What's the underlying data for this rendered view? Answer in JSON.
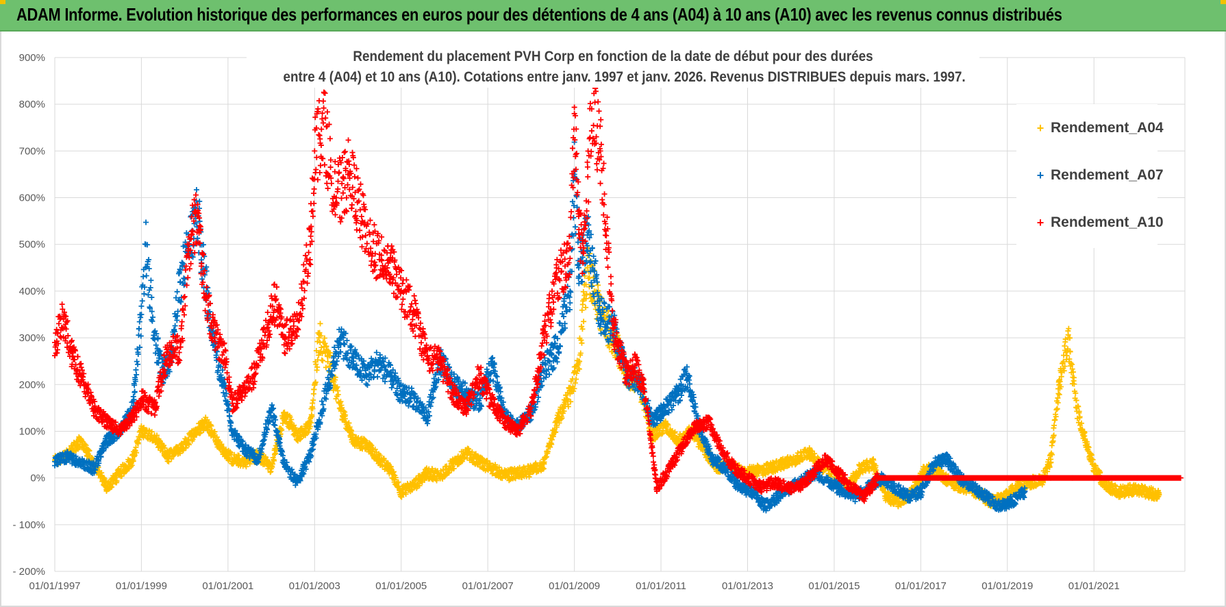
{
  "banner": {
    "title": "ADAM Informe. Evolution historique des performances en euros pour des détentions de 4 ans (A04) à 10 ans (A10) avec les revenus connus distribués"
  },
  "colors": {
    "banner_bg": "#6ec06e",
    "A04": "#ffc000",
    "A07": "#0070c0",
    "A10": "#ff0000",
    "grid": "#d9d9d9",
    "text": "#404040"
  },
  "chart_data": {
    "type": "scatter",
    "title": "Rendement du placement PVH Corp en fonction de la date de début pour des durées entre 4 (A04) et 10 ans (A10).  Cotations entre janv. 1997 et janv. 2026.  Revenus DISTRIBUES depuis mars. 1997.",
    "title_lines": [
      "Rendement du placement PVH Corp en fonction de la date de début pour des durées",
      "entre 4 (A04) et 10 ans (A10).  Cotations entre janv. 1997 et janv. 2026.  Revenus DISTRIBUES depuis mars. 1997."
    ],
    "xlabel": "",
    "ylabel": "",
    "x_ticks": [
      "01/01/1997",
      "01/01/1999",
      "01/01/2001",
      "01/01/2003",
      "01/01/2005",
      "01/01/2007",
      "01/01/2009",
      "01/01/2011",
      "01/01/2013",
      "01/01/2015",
      "01/01/2017",
      "01/01/2019",
      "01/01/2021"
    ],
    "xlim": [
      1997.0,
      2023.1
    ],
    "y_ticks": [
      "- 200%",
      "- 100%",
      "0%",
      "100%",
      "200%",
      "300%",
      "400%",
      "500%",
      "600%",
      "700%",
      "800%",
      "900%"
    ],
    "ylim": [
      -200,
      900
    ],
    "legend_position": "top-right",
    "series": [
      {
        "name": "Rendement_A04",
        "x": [
          1997.0,
          1997.3,
          1997.6,
          1997.9,
          1998.2,
          1998.5,
          1998.8,
          1999.0,
          1999.3,
          1999.6,
          1999.9,
          2000.2,
          2000.5,
          2000.8,
          2001.1,
          2001.4,
          2001.7,
          2002.0,
          2002.3,
          2002.6,
          2002.9,
          2003.1,
          2003.3,
          2003.6,
          2003.9,
          2004.2,
          2004.5,
          2004.8,
          2005.0,
          2005.3,
          2005.6,
          2005.9,
          2006.2,
          2006.5,
          2006.8,
          2007.1,
          2007.4,
          2007.7,
          2008.0,
          2008.3,
          2008.6,
          2008.9,
          2009.1,
          2009.3,
          2009.6,
          2009.9,
          2010.2,
          2010.5,
          2010.8,
          2011.1,
          2011.4,
          2011.7,
          2012.0,
          2012.3,
          2012.6,
          2012.9,
          2013.2,
          2013.5,
          2013.8,
          2014.1,
          2014.4,
          2014.7,
          2015.0,
          2015.3,
          2015.6,
          2015.9,
          2016.2,
          2016.5,
          2016.8,
          2017.1,
          2017.4,
          2017.7,
          2018.0,
          2018.3,
          2018.6,
          2018.9,
          2019.2,
          2019.5,
          2019.8,
          2020.0,
          2020.2,
          2020.4,
          2020.6,
          2020.8,
          2021.0,
          2021.3,
          2021.6,
          2021.9,
          2022.2,
          2022.5
        ],
        "values": [
          35,
          50,
          80,
          30,
          -20,
          10,
          40,
          100,
          90,
          45,
          60,
          95,
          120,
          70,
          40,
          35,
          50,
          20,
          140,
          90,
          110,
          300,
          260,
          150,
          80,
          70,
          40,
          10,
          -30,
          -15,
          10,
          5,
          30,
          55,
          35,
          20,
          5,
          10,
          15,
          30,
          120,
          180,
          250,
          450,
          350,
          300,
          220,
          200,
          90,
          110,
          80,
          100,
          60,
          20,
          30,
          10,
          15,
          20,
          30,
          40,
          55,
          25,
          10,
          -20,
          20,
          30,
          -40,
          -50,
          -30,
          20,
          10,
          -10,
          -20,
          -30,
          -50,
          -45,
          -20,
          -10,
          -5,
          40,
          200,
          300,
          150,
          80,
          20,
          -20,
          -30,
          -25,
          -30,
          -35
        ]
      },
      {
        "name": "Rendement_A07",
        "x": [
          1997.0,
          1997.3,
          1997.6,
          1997.9,
          1998.2,
          1998.5,
          1998.8,
          1999.0,
          1999.1,
          1999.3,
          1999.5,
          1999.7,
          1999.9,
          2000.1,
          2000.3,
          2000.5,
          2000.7,
          2000.9,
          2001.1,
          2001.4,
          2001.7,
          2002.0,
          2002.3,
          2002.6,
          2002.9,
          2003.1,
          2003.3,
          2003.6,
          2003.9,
          2004.2,
          2004.5,
          2004.8,
          2005.0,
          2005.3,
          2005.6,
          2005.9,
          2006.2,
          2006.5,
          2006.8,
          2007.1,
          2007.4,
          2007.7,
          2008.0,
          2008.3,
          2008.6,
          2008.9,
          2009.0,
          2009.1,
          2009.3,
          2009.6,
          2009.9,
          2010.2,
          2010.5,
          2010.8,
          2011.1,
          2011.4,
          2011.6,
          2011.9,
          2012.2,
          2012.5,
          2012.8,
          2013.1,
          2013.4,
          2013.7,
          2014.0,
          2014.3,
          2014.6,
          2014.9,
          2015.2,
          2015.5,
          2015.8,
          2016.1,
          2016.4,
          2016.7,
          2017.0,
          2017.3,
          2017.6,
          2017.9,
          2018.2,
          2018.5,
          2018.8,
          2019.1,
          2019.4
        ],
        "values": [
          35,
          45,
          30,
          20,
          80,
          100,
          150,
          350,
          500,
          300,
          220,
          270,
          420,
          500,
          560,
          400,
          280,
          200,
          100,
          60,
          40,
          150,
          30,
          -10,
          50,
          120,
          200,
          300,
          250,
          220,
          250,
          210,
          180,
          170,
          130,
          250,
          200,
          180,
          160,
          240,
          130,
          110,
          140,
          230,
          280,
          400,
          650,
          450,
          520,
          350,
          320,
          220,
          210,
          120,
          150,
          180,
          220,
          100,
          40,
          20,
          -20,
          -30,
          -60,
          -40,
          -20,
          0,
          10,
          -10,
          -30,
          -40,
          -20,
          0,
          -20,
          -40,
          -30,
          30,
          40,
          0,
          -20,
          -40,
          -60,
          -50,
          -30
        ]
      },
      {
        "name": "Rendement_A10",
        "x": [
          1997.0,
          1997.2,
          1997.4,
          1997.6,
          1997.9,
          1998.2,
          1998.5,
          1998.8,
          1999.0,
          1999.3,
          1999.6,
          1999.9,
          2000.1,
          2000.3,
          2000.5,
          2000.7,
          2000.9,
          2001.1,
          2001.4,
          2001.6,
          2001.9,
          2002.1,
          2002.3,
          2002.6,
          2002.9,
          2003.0,
          2003.2,
          2003.5,
          2003.8,
          2004.1,
          2004.4,
          2004.7,
          2005.0,
          2005.3,
          2005.6,
          2005.9,
          2006.2,
          2006.5,
          2006.8,
          2007.1,
          2007.4,
          2007.7,
          2008.0,
          2008.3,
          2008.6,
          2008.9,
          2009.0,
          2009.1,
          2009.2,
          2009.4,
          2009.6,
          2009.9,
          2010.2,
          2010.4,
          2010.6,
          2010.9,
          2011.2,
          2011.5,
          2011.8,
          2012.1,
          2012.4,
          2012.7,
          2013.0,
          2013.3,
          2013.6,
          2013.9,
          2014.2,
          2014.5,
          2014.8,
          2015.1,
          2015.4,
          2015.7,
          2016.0,
          2016.5,
          2017.0,
          2017.5,
          2018.0,
          2018.5,
          2019.0,
          2019.5,
          2020.0,
          2020.5,
          2021.0,
          2021.5,
          2022.0,
          2022.5,
          2023.0
        ],
        "values": [
          290,
          340,
          260,
          220,
          150,
          120,
          100,
          130,
          170,
          150,
          270,
          280,
          500,
          560,
          380,
          300,
          270,
          160,
          190,
          220,
          320,
          380,
          300,
          320,
          500,
          700,
          760,
          600,
          650,
          550,
          480,
          460,
          400,
          350,
          260,
          250,
          180,
          150,
          220,
          160,
          120,
          100,
          150,
          300,
          430,
          470,
          780,
          560,
          460,
          790,
          700,
          320,
          220,
          240,
          200,
          -20,
          20,
          70,
          110,
          120,
          60,
          20,
          0,
          -20,
          -10,
          -20,
          -20,
          10,
          40,
          10,
          -20,
          -40,
          0,
          0,
          0,
          0,
          0,
          0,
          0,
          0,
          0,
          0,
          0,
          0,
          0,
          0,
          0
        ]
      }
    ]
  }
}
